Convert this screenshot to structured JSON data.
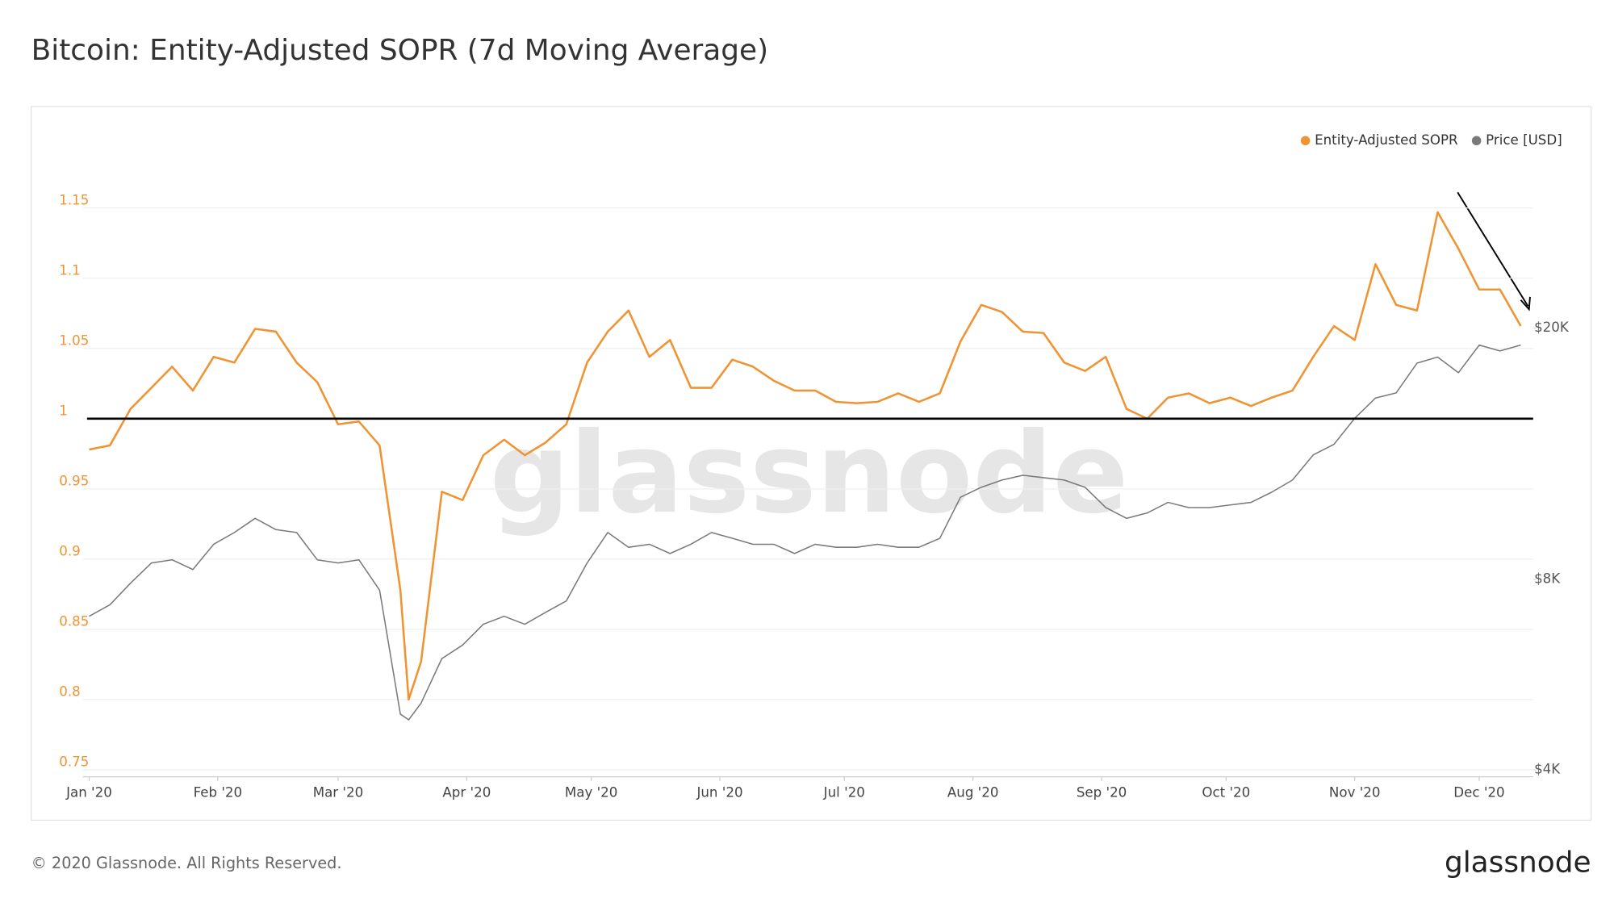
{
  "chart_data": {
    "type": "line",
    "title": "Bitcoin: Entity-Adjusted SOPR (7d Moving Average)",
    "watermark": "glassnode",
    "footer": "© 2020 Glassnode. All Rights Reserved.",
    "logo": "glassnode",
    "reference_line": 1,
    "xlim": [
      -1.5,
      348
    ],
    "xticks": [
      {
        "value": 0,
        "label": "Jan '20"
      },
      {
        "value": 31,
        "label": "Feb '20"
      },
      {
        "value": 60,
        "label": "Mar '20"
      },
      {
        "value": 91,
        "label": "Apr '20"
      },
      {
        "value": 121,
        "label": "May '20"
      },
      {
        "value": 152,
        "label": "Jun '20"
      },
      {
        "value": 182,
        "label": "Jul '20"
      },
      {
        "value": 213,
        "label": "Aug '20"
      },
      {
        "value": 244,
        "label": "Sep '20"
      },
      {
        "value": 274,
        "label": "Oct '20"
      },
      {
        "value": 305,
        "label": "Nov '20"
      },
      {
        "value": 335,
        "label": "Dec '20"
      }
    ],
    "ylim": [
      0.745,
      1.195
    ],
    "yticks": [
      0.75,
      0.8,
      0.85,
      0.9,
      0.95,
      1,
      1.05,
      1.1,
      1.15
    ],
    "y2lim": [
      3900,
      39000
    ],
    "y2scale": "log",
    "y2ticks": [
      {
        "value": 4000,
        "label": "$4K"
      },
      {
        "value": 8000,
        "label": "$8K"
      },
      {
        "value": 20000,
        "label": "$20K"
      }
    ],
    "grid": true,
    "legend": "top-right",
    "x": [
      0,
      5,
      10,
      15,
      20,
      25,
      30,
      35,
      40,
      45,
      50,
      55,
      60,
      65,
      70,
      75,
      77,
      80,
      85,
      90,
      95,
      100,
      105,
      110,
      115,
      120,
      125,
      130,
      135,
      140,
      145,
      150,
      155,
      160,
      165,
      170,
      175,
      180,
      185,
      190,
      195,
      200,
      205,
      210,
      215,
      220,
      225,
      230,
      235,
      240,
      245,
      250,
      255,
      260,
      265,
      270,
      275,
      280,
      285,
      290,
      295,
      300,
      305,
      310,
      315,
      320,
      325,
      330,
      335,
      340,
      345
    ],
    "series": [
      {
        "name": "Entity-Adjusted SOPR",
        "color": "#f09433",
        "axis": "y",
        "values": [
          0.978,
          0.981,
          1.007,
          1.022,
          1.037,
          1.02,
          1.044,
          1.04,
          1.064,
          1.062,
          1.04,
          1.026,
          0.996,
          0.998,
          0.981,
          0.878,
          0.8,
          0.827,
          0.948,
          0.942,
          0.974,
          0.985,
          0.974,
          0.983,
          0.996,
          1.04,
          1.062,
          1.077,
          1.044,
          1.056,
          1.022,
          1.022,
          1.042,
          1.037,
          1.027,
          1.02,
          1.02,
          1.012,
          1.011,
          1.012,
          1.018,
          1.012,
          1.018,
          1.055,
          1.081,
          1.076,
          1.062,
          1.061,
          1.04,
          1.034,
          1.044,
          1.007,
          1.0,
          1.015,
          1.018,
          1.011,
          1.015,
          1.009,
          1.015,
          1.02,
          1.044,
          1.066,
          1.056,
          1.11,
          1.081,
          1.077,
          1.147,
          1.121,
          1.092,
          1.092,
          1.066
        ]
      },
      {
        "name": "Price [USD]",
        "color": "#7a7a7a",
        "axis": "y2",
        "values": [
          7000,
          7300,
          7900,
          8500,
          8600,
          8300,
          9100,
          9500,
          10000,
          9600,
          9500,
          8600,
          8500,
          8600,
          7700,
          4900,
          4800,
          5100,
          6000,
          6300,
          6800,
          7000,
          6800,
          7100,
          7400,
          8500,
          9500,
          9000,
          9100,
          8800,
          9100,
          9500,
          9300,
          9100,
          9100,
          8800,
          9100,
          9000,
          9000,
          9100,
          9000,
          9000,
          9300,
          10800,
          11200,
          11500,
          11700,
          11600,
          11500,
          11200,
          10400,
          10000,
          10200,
          10600,
          10400,
          10400,
          10500,
          10600,
          11000,
          11500,
          12600,
          13100,
          14400,
          15500,
          15800,
          17600,
          18000,
          17000,
          18800,
          18400,
          18800
        ]
      }
    ]
  }
}
